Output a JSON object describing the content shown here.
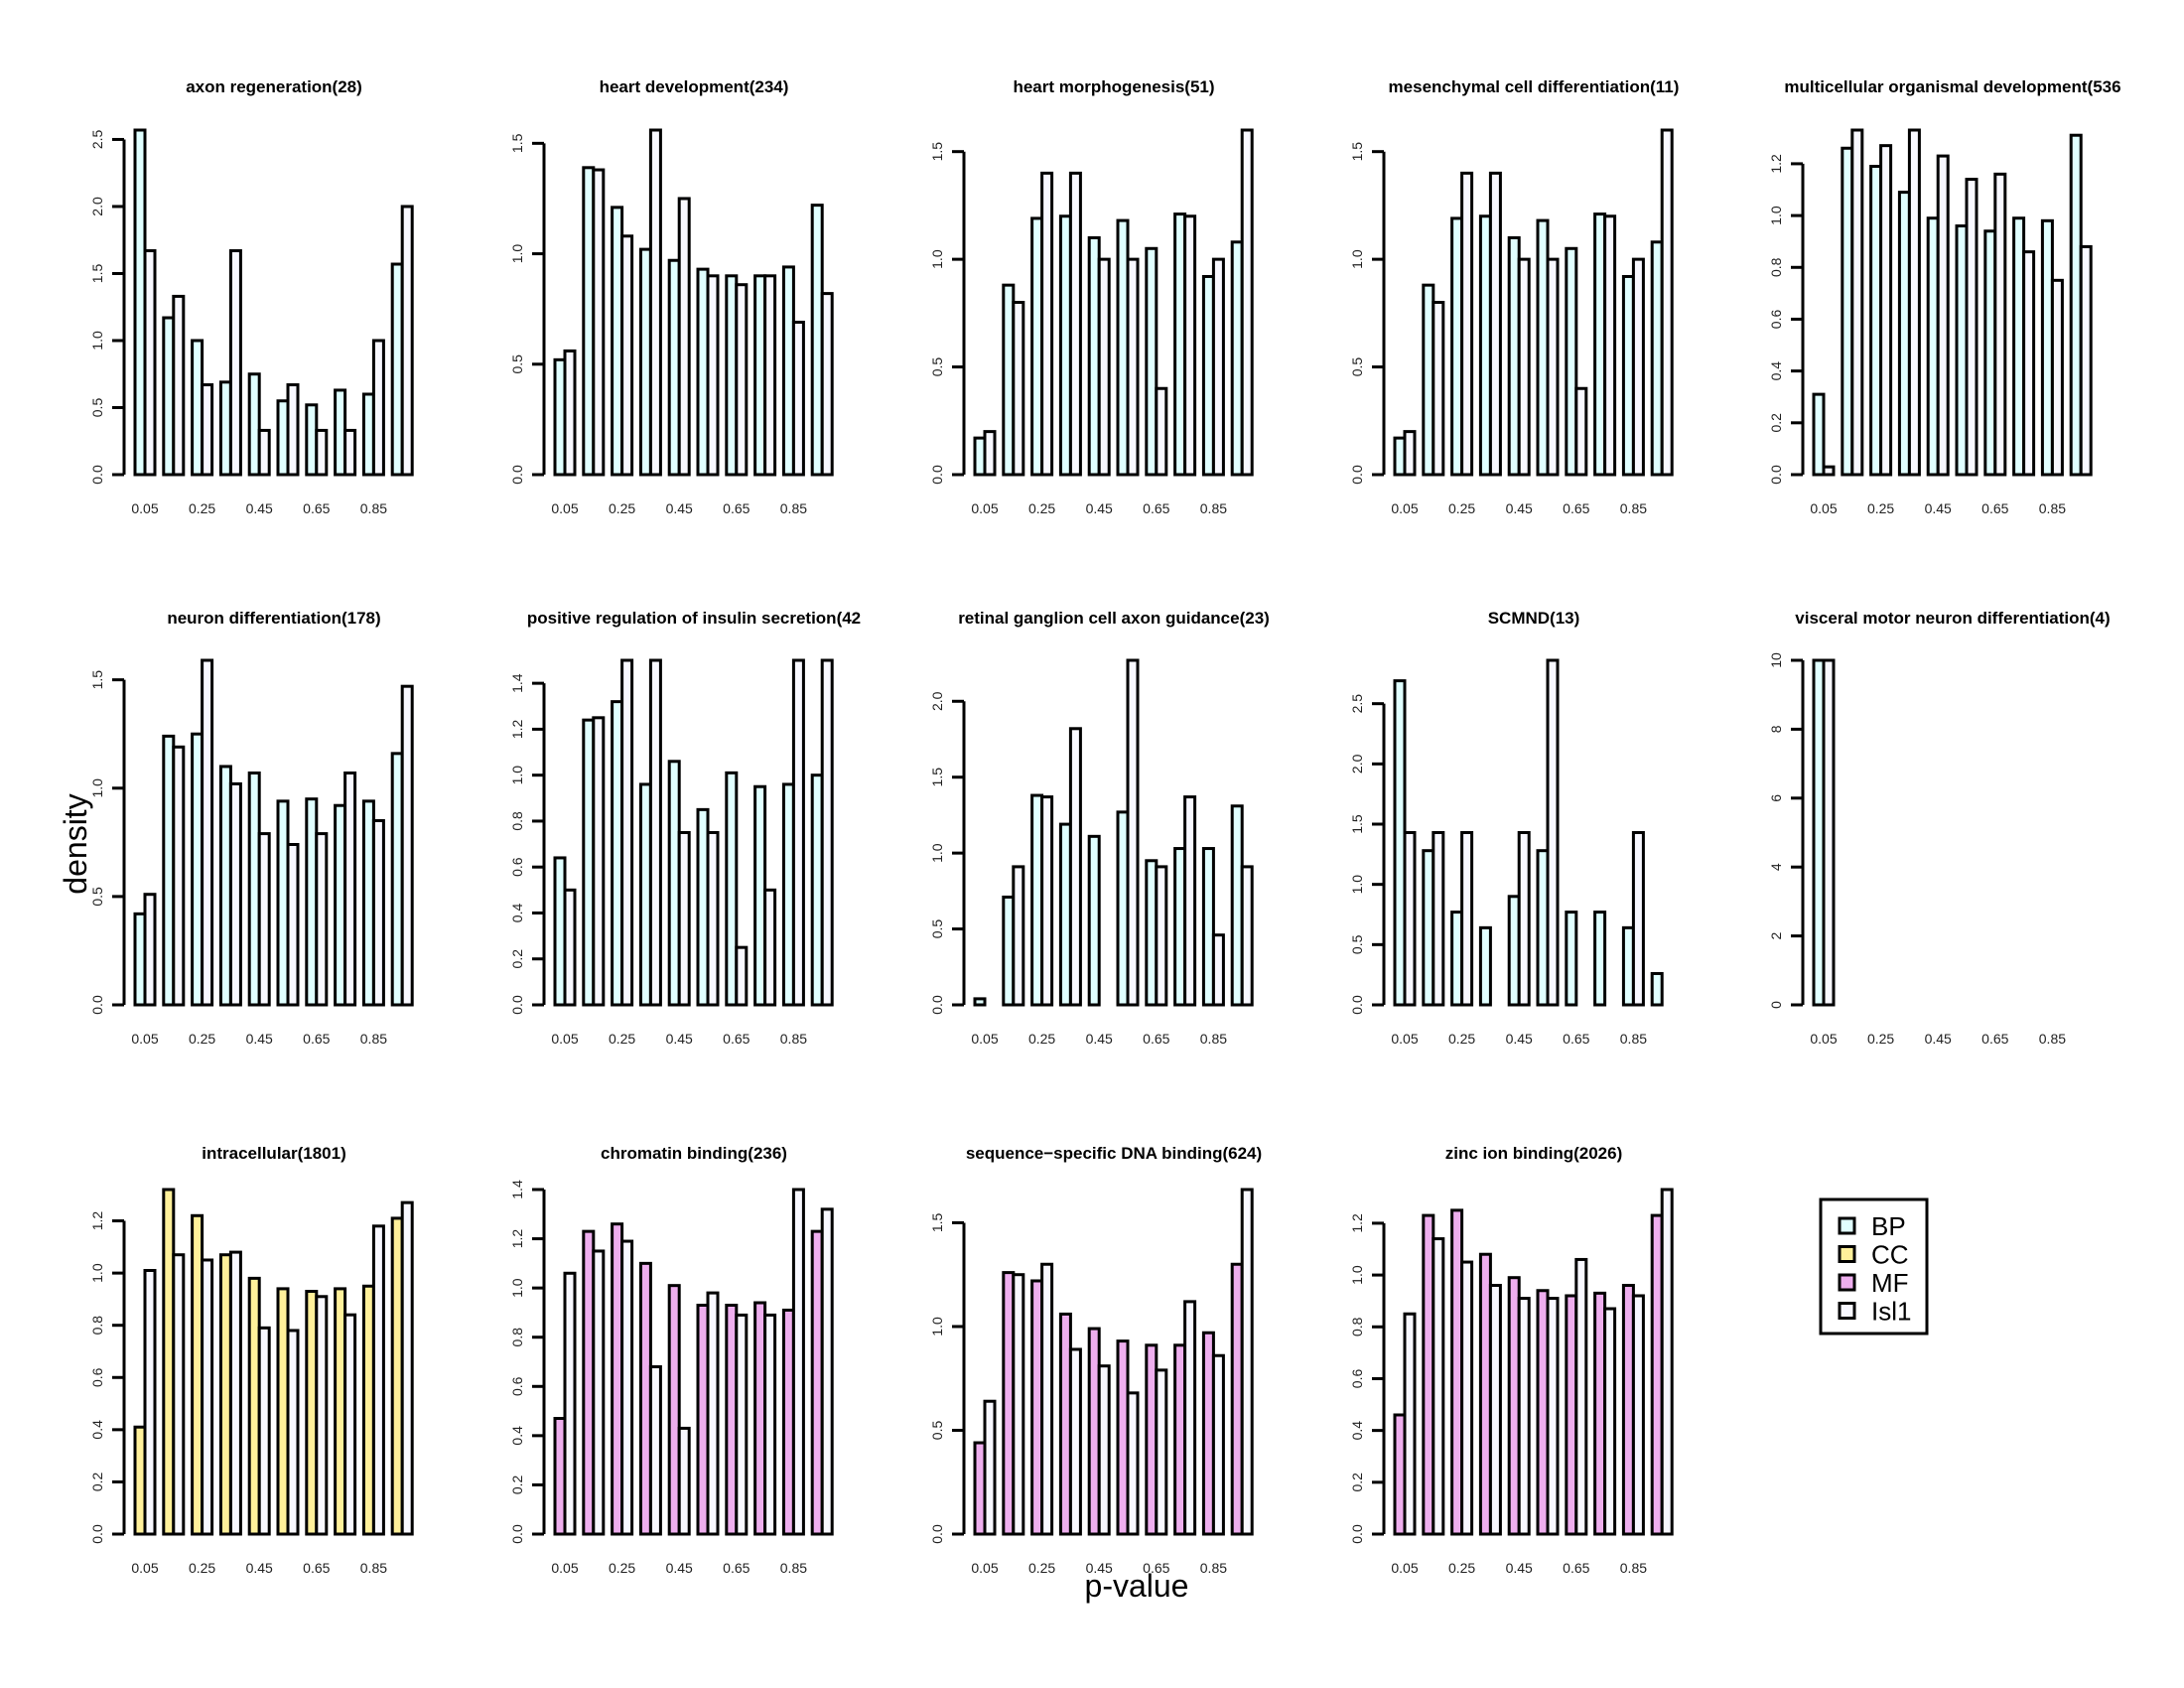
{
  "chart_data": {
    "type": "bar",
    "xlabel": "p-value",
    "ylabel": "density",
    "x_tick_labels": [
      "0.05",
      "0.25",
      "0.45",
      "0.65",
      "0.85"
    ],
    "bins": [
      0.05,
      0.15,
      0.25,
      0.35,
      0.45,
      0.55,
      0.65,
      0.75,
      0.85,
      0.95
    ],
    "legend": {
      "position": "bottom-right",
      "entries": [
        {
          "name": "BP",
          "color": "#e0ffff"
        },
        {
          "name": "CC",
          "color": "#fff09a"
        },
        {
          "name": "MF",
          "color": "#eeaeee"
        },
        {
          "name": "Isl1",
          "color": "#f8f8ff"
        }
      ]
    },
    "panels": [
      {
        "title": "axon regeneration(28)",
        "ylim": [
          0,
          2.57
        ],
        "yticks": [
          0,
          0.5,
          1.0,
          1.5,
          2.0,
          2.5
        ],
        "ytick_labels": [
          "0.0",
          "0.5",
          "1.0",
          "1.5",
          "2.0",
          "2.5"
        ],
        "series": [
          {
            "name": "BP",
            "values": [
              2.57,
              1.17,
              1.0,
              0.69,
              0.75,
              0.55,
              0.52,
              0.63,
              0.6,
              1.57
            ]
          },
          {
            "name": "Isl1",
            "values": [
              1.67,
              1.33,
              0.67,
              1.67,
              0.33,
              0.67,
              0.33,
              0.33,
              1.0,
              2.0
            ]
          }
        ]
      },
      {
        "title": "heart development(234)",
        "ylim": [
          0,
          1.56
        ],
        "yticks": [
          0,
          0.5,
          1.0,
          1.5
        ],
        "ytick_labels": [
          "0.0",
          "0.5",
          "1.0",
          "1.5"
        ],
        "series": [
          {
            "name": "BP",
            "values": [
              0.52,
              1.39,
              1.21,
              1.02,
              0.97,
              0.93,
              0.9,
              0.9,
              0.94,
              1.22
            ]
          },
          {
            "name": "Isl1",
            "values": [
              0.56,
              1.38,
              1.08,
              1.56,
              1.25,
              0.9,
              0.86,
              0.9,
              0.69,
              0.82
            ]
          }
        ]
      },
      {
        "title": "heart morphogenesis(51)",
        "ylim": [
          0,
          1.6
        ],
        "yticks": [
          0,
          0.5,
          1.0,
          1.5
        ],
        "ytick_labels": [
          "0.0",
          "0.5",
          "1.0",
          "1.5"
        ],
        "series": [
          {
            "name": "BP",
            "values": [
              0.17,
              0.88,
              1.19,
              1.2,
              1.1,
              1.18,
              1.05,
              1.21,
              0.92,
              1.08
            ]
          },
          {
            "name": "Isl1",
            "values": [
              0.2,
              0.8,
              1.4,
              1.4,
              1.0,
              1.0,
              0.4,
              1.2,
              1.0,
              1.6
            ]
          }
        ]
      },
      {
        "title": "mesenchymal cell differentiation(11)",
        "ylim": [
          0,
          1.6
        ],
        "yticks": [
          0,
          0.5,
          1.0,
          1.5
        ],
        "ytick_labels": [
          "0.0",
          "0.5",
          "1.0",
          "1.5"
        ],
        "series": [
          {
            "name": "BP",
            "values": [
              0.17,
              0.88,
              1.19,
              1.2,
              1.1,
              1.18,
              1.05,
              1.21,
              0.92,
              1.08
            ]
          },
          {
            "name": "Isl1",
            "values": [
              0.2,
              0.8,
              1.4,
              1.4,
              1.0,
              1.0,
              0.4,
              1.2,
              1.0,
              1.6
            ]
          }
        ]
      },
      {
        "title": "multicellular organismal development(536",
        "ylim": [
          0,
          1.33
        ],
        "yticks": [
          0,
          0.2,
          0.4,
          0.6,
          0.8,
          1.0,
          1.2
        ],
        "ytick_labels": [
          "0.0",
          "0.2",
          "0.4",
          "0.6",
          "0.8",
          "1.0",
          "1.2"
        ],
        "series": [
          {
            "name": "BP",
            "values": [
              0.31,
              1.26,
              1.19,
              1.09,
              0.99,
              0.96,
              0.94,
              0.99,
              0.98,
              1.31
            ]
          },
          {
            "name": "Isl1",
            "values": [
              0.03,
              1.33,
              1.27,
              1.33,
              1.23,
              1.14,
              1.16,
              0.86,
              0.75,
              0.88
            ]
          }
        ]
      },
      {
        "title": "neuron differentiation(178)",
        "ylim": [
          0,
          1.59
        ],
        "yticks": [
          0,
          0.5,
          1.0,
          1.5
        ],
        "ytick_labels": [
          "0.0",
          "0.5",
          "1.0",
          "1.5"
        ],
        "series": [
          {
            "name": "BP",
            "values": [
              0.42,
              1.24,
              1.25,
              1.1,
              1.07,
              0.94,
              0.95,
              0.92,
              0.94,
              1.16
            ]
          },
          {
            "name": "Isl1",
            "values": [
              0.51,
              1.19,
              1.59,
              1.02,
              0.79,
              0.74,
              0.79,
              1.07,
              0.85,
              1.47
            ]
          }
        ]
      },
      {
        "title": "positive regulation of insulin secretion(42",
        "ylim": [
          0,
          1.5
        ],
        "yticks": [
          0,
          0.2,
          0.4,
          0.6,
          0.8,
          1.0,
          1.2,
          1.4
        ],
        "ytick_labels": [
          "0.0",
          "0.2",
          "0.4",
          "0.6",
          "0.8",
          "1.0",
          "1.2",
          "1.4"
        ],
        "series": [
          {
            "name": "BP",
            "values": [
              0.64,
              1.24,
              1.32,
              0.96,
              1.06,
              0.85,
              1.01,
              0.95,
              0.96,
              1.0
            ]
          },
          {
            "name": "Isl1",
            "values": [
              0.5,
              1.25,
              1.5,
              1.5,
              0.75,
              0.75,
              0.25,
              0.5,
              1.5,
              1.5
            ]
          }
        ]
      },
      {
        "title": "retinal ganglion cell axon guidance(23)",
        "ylim": [
          0,
          2.27
        ],
        "yticks": [
          0,
          0.5,
          1.0,
          1.5,
          2.0
        ],
        "ytick_labels": [
          "0.0",
          "0.5",
          "1.0",
          "1.5",
          "2.0"
        ],
        "series": [
          {
            "name": "BP",
            "values": [
              0.04,
              0.71,
              1.38,
              1.19,
              1.11,
              1.27,
              0.95,
              1.03,
              1.03,
              1.31
            ]
          },
          {
            "name": "Isl1",
            "values": [
              0,
              0.91,
              1.37,
              1.82,
              0,
              2.27,
              0.91,
              1.37,
              0.46,
              0.91
            ]
          }
        ]
      },
      {
        "title": "SCMND(13)",
        "ylim": [
          0,
          2.86
        ],
        "yticks": [
          0,
          0.5,
          1.0,
          1.5,
          2.0,
          2.5
        ],
        "ytick_labels": [
          "0.0",
          "0.5",
          "1.0",
          "1.5",
          "2.0",
          "2.5"
        ],
        "series": [
          {
            "name": "BP",
            "values": [
              2.69,
              1.28,
              0.77,
              0.64,
              0.9,
              1.28,
              0.77,
              0.77,
              0.64,
              0.26
            ]
          },
          {
            "name": "Isl1",
            "values": [
              1.43,
              1.43,
              1.43,
              0,
              1.43,
              2.86,
              0,
              0,
              1.43,
              0
            ]
          }
        ]
      },
      {
        "title": "visceral motor neuron differentiation(4)",
        "ylim": [
          0,
          10
        ],
        "yticks": [
          0,
          2,
          4,
          6,
          8,
          10
        ],
        "ytick_labels": [
          "0",
          "2",
          "4",
          "6",
          "8",
          "10"
        ],
        "series": [
          {
            "name": "BP",
            "values": [
              10,
              0,
              0,
              0,
              0,
              0,
              0,
              0,
              0,
              0
            ]
          },
          {
            "name": "Isl1",
            "values": [
              10,
              0,
              0,
              0,
              0,
              0,
              0,
              0,
              0,
              0
            ]
          }
        ]
      },
      {
        "title": "intracellular(1801)",
        "ylim": [
          0,
          1.32
        ],
        "yticks": [
          0,
          0.2,
          0.4,
          0.6,
          0.8,
          1.0,
          1.2
        ],
        "ytick_labels": [
          "0.0",
          "0.2",
          "0.4",
          "0.6",
          "0.8",
          "1.0",
          "1.2"
        ],
        "series": [
          {
            "name": "CC",
            "values": [
              0.41,
              1.32,
              1.22,
              1.07,
              0.98,
              0.94,
              0.93,
              0.94,
              0.95,
              1.21
            ]
          },
          {
            "name": "Isl1",
            "values": [
              1.01,
              1.07,
              1.05,
              1.08,
              0.79,
              0.78,
              0.91,
              0.84,
              1.18,
              1.27
            ]
          }
        ]
      },
      {
        "title": "chromatin binding(236)",
        "ylim": [
          0,
          1.4
        ],
        "yticks": [
          0,
          0.2,
          0.4,
          0.6,
          0.8,
          1.0,
          1.2,
          1.4
        ],
        "ytick_labels": [
          "0.0",
          "0.2",
          "0.4",
          "0.6",
          "0.8",
          "1.0",
          "1.2",
          "1.4"
        ],
        "series": [
          {
            "name": "MF",
            "values": [
              0.47,
              1.23,
              1.26,
              1.1,
              1.01,
              0.93,
              0.93,
              0.94,
              0.91,
              1.23
            ]
          },
          {
            "name": "Isl1",
            "values": [
              1.06,
              1.15,
              1.19,
              0.68,
              0.43,
              0.98,
              0.89,
              0.89,
              1.4,
              1.32
            ]
          }
        ]
      },
      {
        "title": "sequence−specific DNA binding(624)",
        "ylim": [
          0,
          1.66
        ],
        "yticks": [
          0,
          0.5,
          1.0,
          1.5
        ],
        "ytick_labels": [
          "0.0",
          "0.5",
          "1.0",
          "1.5"
        ],
        "series": [
          {
            "name": "MF",
            "values": [
              0.44,
              1.26,
              1.22,
              1.06,
              0.99,
              0.93,
              0.91,
              0.91,
              0.97,
              1.3
            ]
          },
          {
            "name": "Isl1",
            "values": [
              0.64,
              1.25,
              1.3,
              0.89,
              0.81,
              0.68,
              0.79,
              1.12,
              0.86,
              1.66
            ]
          }
        ]
      },
      {
        "title": "zinc ion binding(2026)",
        "ylim": [
          0,
          1.33
        ],
        "yticks": [
          0,
          0.2,
          0.4,
          0.6,
          0.8,
          1.0,
          1.2
        ],
        "ytick_labels": [
          "0.0",
          "0.2",
          "0.4",
          "0.6",
          "0.8",
          "1.0",
          "1.2"
        ],
        "series": [
          {
            "name": "MF",
            "values": [
              0.46,
              1.23,
              1.25,
              1.08,
              0.99,
              0.94,
              0.92,
              0.93,
              0.96,
              1.23
            ]
          },
          {
            "name": "Isl1",
            "values": [
              0.85,
              1.14,
              1.05,
              0.96,
              0.91,
              0.91,
              1.06,
              0.87,
              0.92,
              1.33
            ]
          }
        ]
      }
    ]
  }
}
